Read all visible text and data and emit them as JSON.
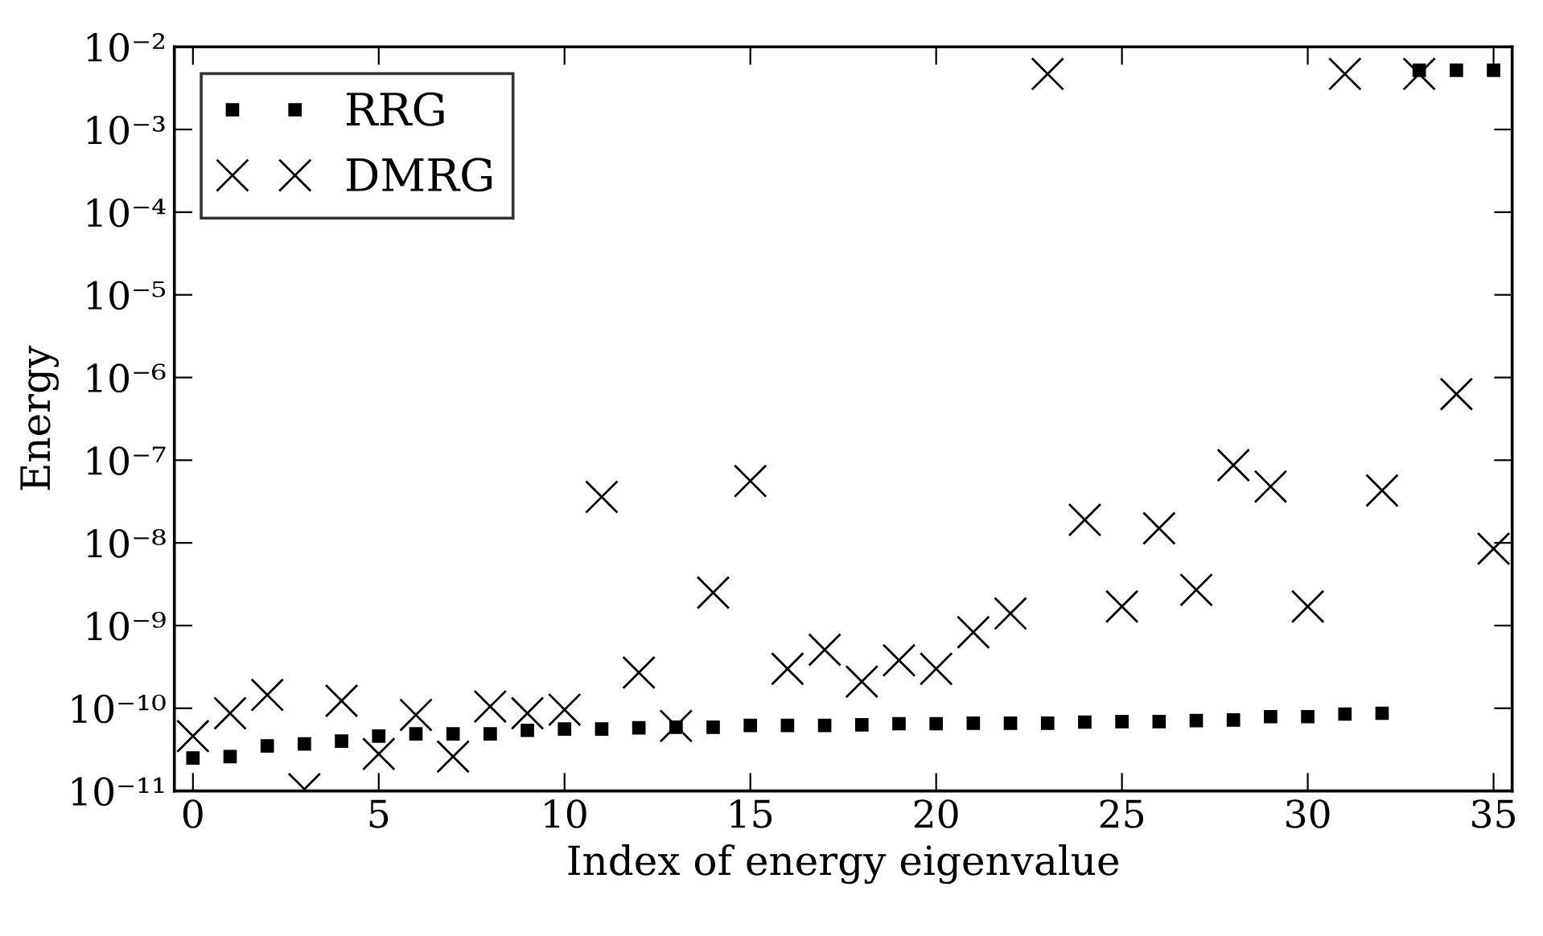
{
  "chart_data": {
    "type": "scatter",
    "xlabel": "Index of energy eigenvalue",
    "ylabel": "Energy",
    "log": "y",
    "legend": "top left",
    "x": [
      0,
      1,
      2,
      3,
      4,
      5,
      6,
      7,
      8,
      9,
      10,
      11,
      12,
      13,
      14,
      15,
      16,
      17,
      18,
      19,
      20,
      21,
      22,
      23,
      24,
      25,
      26,
      27,
      28,
      29,
      30,
      31,
      32,
      33,
      34,
      35
    ],
    "xlim": [
      -0.5,
      35.5
    ],
    "xticks": [
      0,
      5,
      10,
      15,
      20,
      25,
      30,
      35
    ],
    "ylim": [
      1e-11,
      0.01
    ],
    "yticks": [
      {
        "value": 1e-11,
        "label": "10⁻¹¹"
      },
      {
        "value": 1e-10,
        "label": "10⁻¹⁰"
      },
      {
        "value": 1e-09,
        "label": "10⁻⁹"
      },
      {
        "value": 1e-08,
        "label": "10⁻⁸"
      },
      {
        "value": 1e-07,
        "label": "10⁻⁷"
      },
      {
        "value": 1e-06,
        "label": "10⁻⁶"
      },
      {
        "value": 1e-05,
        "label": "10⁻⁵"
      },
      {
        "value": 0.0001,
        "label": "10⁻⁴"
      },
      {
        "value": 0.001,
        "label": "10⁻³"
      },
      {
        "value": 0.01,
        "label": "10⁻²"
      }
    ],
    "series": [
      {
        "name": "RRG",
        "color": "#000000",
        "marker": "square",
        "values": [
          2.5e-11,
          2.6e-11,
          3.5e-11,
          3.7e-11,
          4e-11,
          4.6e-11,
          4.9e-11,
          4.9e-11,
          4.9e-11,
          5.4e-11,
          5.6e-11,
          5.6e-11,
          5.8e-11,
          5.9e-11,
          5.9e-11,
          6.2e-11,
          6.2e-11,
          6.2e-11,
          6.3e-11,
          6.5e-11,
          6.5e-11,
          6.6e-11,
          6.6e-11,
          6.6e-11,
          6.8e-11,
          6.9e-11,
          6.9e-11,
          7.1e-11,
          7.2e-11,
          7.9e-11,
          7.9e-11,
          8.5e-11,
          8.7e-11,
          0.0052,
          0.0052,
          0.0052
        ]
      },
      {
        "name": "DMRG",
        "color": "#000000",
        "marker": "cross",
        "values": [
          4.6e-11,
          8.7e-11,
          1.45e-10,
          1.05e-11,
          1.23e-10,
          2.8e-11,
          8.3e-11,
          2.6e-11,
          1.05e-10,
          8.7e-11,
          9.6e-11,
          3.6e-08,
          2.7e-10,
          6.1e-11,
          2.5e-09,
          5.6e-08,
          3e-10,
          5.1e-10,
          2.1e-10,
          3.8e-10,
          3e-10,
          8.3e-10,
          1.4e-09,
          0.0047,
          1.9e-08,
          1.7e-09,
          1.5e-08,
          2.7e-09,
          8.7e-08,
          4.8e-08,
          1.7e-09,
          0.0047,
          4.3e-08,
          0.0047,
          6.3e-07,
          8.5e-09
        ]
      }
    ]
  }
}
